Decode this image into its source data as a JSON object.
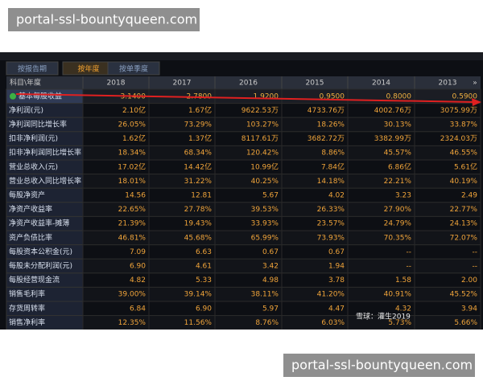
{
  "watermark_top": "portal-ssl-bountyqueen.com",
  "watermark_bottom": "portal-ssl-bountyqueen.com",
  "overlay": "雪球：灌生2019",
  "tabs": [
    "按报告期",
    "按年度",
    "按单季度"
  ],
  "table": {
    "header": [
      "科目\\年度",
      "2018",
      "2017",
      "2016",
      "2015",
      "2014",
      "2013"
    ],
    "more": "»",
    "rows": [
      {
        "label": "基本每股收益",
        "cells": [
          "3.1400",
          "2.7800",
          "1.9200",
          "0.9500",
          "0.8000",
          "0.5900"
        ]
      },
      {
        "label": "净利润(元)",
        "cells": [
          "2.10亿",
          "1.67亿",
          "9622.53万",
          "4733.76万",
          "4002.76万",
          "3075.99万"
        ]
      },
      {
        "label": "净利润同比增长率",
        "cells": [
          "26.05%",
          "73.29%",
          "103.27%",
          "18.26%",
          "30.13%",
          "33.87%"
        ]
      },
      {
        "label": "扣非净利润(元)",
        "cells": [
          "1.62亿",
          "1.37亿",
          "8117.61万",
          "3682.72万",
          "3382.99万",
          "2324.03万"
        ]
      },
      {
        "label": "扣非净利润同比增长率",
        "cells": [
          "18.34%",
          "68.34%",
          "120.42%",
          "8.86%",
          "45.57%",
          "46.55%"
        ]
      },
      {
        "label": "营业总收入(元)",
        "cells": [
          "17.02亿",
          "14.42亿",
          "10.99亿",
          "7.84亿",
          "6.86亿",
          "5.61亿"
        ]
      },
      {
        "label": "营业总收入同比增长率",
        "cells": [
          "18.01%",
          "31.22%",
          "40.25%",
          "14.18%",
          "22.21%",
          "40.19%"
        ]
      },
      {
        "label": "每股净资产",
        "cells": [
          "14.56",
          "12.81",
          "5.67",
          "4.02",
          "3.23",
          "2.49"
        ]
      },
      {
        "label": "净资产收益率",
        "cells": [
          "22.65%",
          "27.78%",
          "39.53%",
          "26.33%",
          "27.90%",
          "22.77%"
        ]
      },
      {
        "label": "净资产收益率-摊薄",
        "cells": [
          "21.39%",
          "19.43%",
          "33.93%",
          "23.57%",
          "24.79%",
          "24.13%"
        ]
      },
      {
        "label": "资产负债比率",
        "cells": [
          "46.81%",
          "45.68%",
          "65.99%",
          "73.93%",
          "70.35%",
          "72.07%"
        ]
      },
      {
        "label": "每股资本公积金(元)",
        "cells": [
          "7.09",
          "6.63",
          "0.67",
          "0.67",
          "--",
          "--"
        ]
      },
      {
        "label": "每股未分配利润(元)",
        "cells": [
          "6.90",
          "4.61",
          "3.42",
          "1.94",
          "--",
          "--"
        ]
      },
      {
        "label": "每股经营现金流",
        "cells": [
          "4.82",
          "5.33",
          "4.98",
          "3.78",
          "1.58",
          "2.00"
        ]
      },
      {
        "label": "销售毛利率",
        "cells": [
          "39.00%",
          "39.14%",
          "38.11%",
          "41.20%",
          "40.91%",
          "45.52%"
        ]
      },
      {
        "label": "存货周转率",
        "cells": [
          "6.84",
          "6.90",
          "5.97",
          "4.47",
          "4.32",
          "3.94"
        ]
      },
      {
        "label": "销售净利率",
        "cells": [
          "12.35%",
          "11.56%",
          "8.76%",
          "6.03%",
          "5.73%",
          "5.66%"
        ]
      }
    ]
  }
}
